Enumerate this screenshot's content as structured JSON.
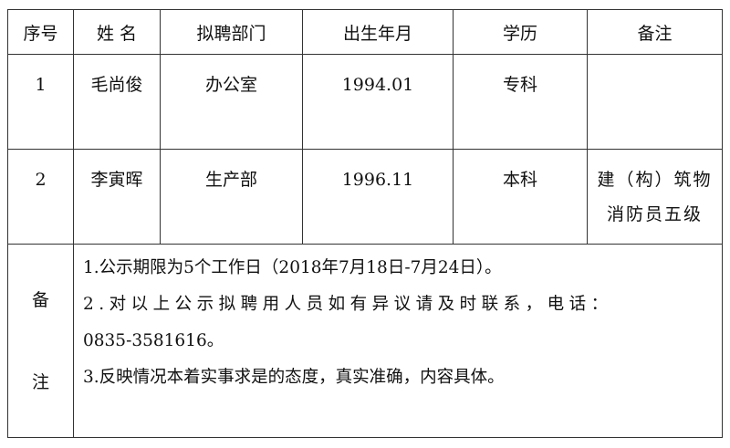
{
  "table": {
    "headers": [
      "序号",
      "姓 名",
      "拟聘部门",
      "出生年月",
      "学历",
      "备注"
    ],
    "rows": [
      [
        "1",
        "毛尚俊",
        "办公室",
        "1994.01",
        "专科",
        ""
      ],
      [
        "2",
        "李寅晖",
        "生产部",
        "1996.11",
        "本科",
        "建（构）筑物消防员五级"
      ]
    ],
    "remarks_label": [
      "备",
      "注"
    ],
    "remarks": [
      "1.公示期限为5个工作日（2018年7月18日-7月24日）。",
      "2.对以上公示拟聘用人员如有异议请及时联系，电话：",
      "0835-3581616。",
      "3.反映情况本着实事求是的态度，真实准确，内容具体。"
    ]
  }
}
